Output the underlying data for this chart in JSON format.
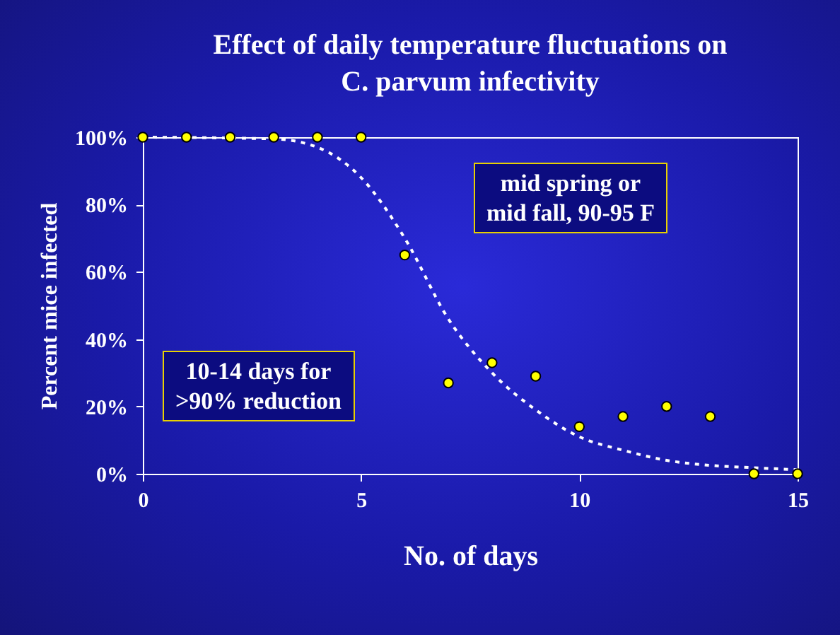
{
  "chart_data": {
    "type": "scatter",
    "title": [
      "Effect of daily temperature fluctuations on",
      "C. parvum infectivity"
    ],
    "xlabel": "No. of days",
    "ylabel": "Percent mice infected",
    "marker": "circle",
    "grid": false,
    "xlim": [
      0,
      15
    ],
    "xticks": [
      0,
      5,
      10,
      15
    ],
    "ylim": [
      0,
      100
    ],
    "yticks": [
      {
        "value": 0,
        "label": "0%"
      },
      {
        "value": 20,
        "label": "20%"
      },
      {
        "value": 40,
        "label": "40%"
      },
      {
        "value": 60,
        "label": "60%"
      },
      {
        "value": 80,
        "label": "80%"
      },
      {
        "value": 100,
        "label": "100%"
      }
    ],
    "annotations": [
      "mid spring or\nmid fall, 90-95 F",
      "10-14 days for\n>90% reduction"
    ],
    "series": [
      {
        "type": "line",
        "color": "#ffffff",
        "line_style": "dashed",
        "marker": "none",
        "x": [
          0,
          3,
          4,
          5,
          6,
          7,
          8,
          9,
          10,
          11,
          12,
          13,
          14,
          15
        ],
        "values": [
          100,
          99.5,
          97,
          88,
          70,
          46,
          30,
          19,
          11,
          7,
          4,
          2.5,
          1.8,
          1.2
        ]
      },
      {
        "color": "#ffff00",
        "x": [
          0,
          1,
          2,
          3,
          4,
          5,
          6,
          7,
          8,
          9,
          10,
          11,
          12,
          13,
          14,
          15
        ],
        "values": [
          100,
          100,
          100,
          100,
          100,
          100,
          65,
          27,
          33,
          29,
          14,
          17,
          20,
          17,
          0,
          0
        ]
      }
    ]
  }
}
